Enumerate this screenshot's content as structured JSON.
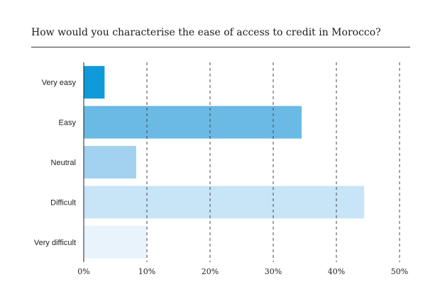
{
  "chart_data": {
    "type": "bar",
    "orientation": "horizontal",
    "title": "How would you characterise the ease of access to credit in Morocco?",
    "categories": [
      "Very easy",
      "Easy",
      "Neutral",
      "Difficult",
      "Very difficult"
    ],
    "values": [
      3.3,
      34.5,
      8.3,
      44.4,
      10.0
    ],
    "colors": [
      "#0f9ad9",
      "#6bb9e5",
      "#a3d1f0",
      "#c8e4f7",
      "#e9f3fc"
    ],
    "xlim": [
      0,
      50
    ],
    "xticks": [
      0,
      10,
      20,
      30,
      40,
      50
    ],
    "xtick_labels": [
      "0%",
      "10%",
      "20%",
      "30%",
      "40%",
      "50%"
    ],
    "grid": "vertical-dashed",
    "xlabel": "",
    "ylabel": ""
  }
}
